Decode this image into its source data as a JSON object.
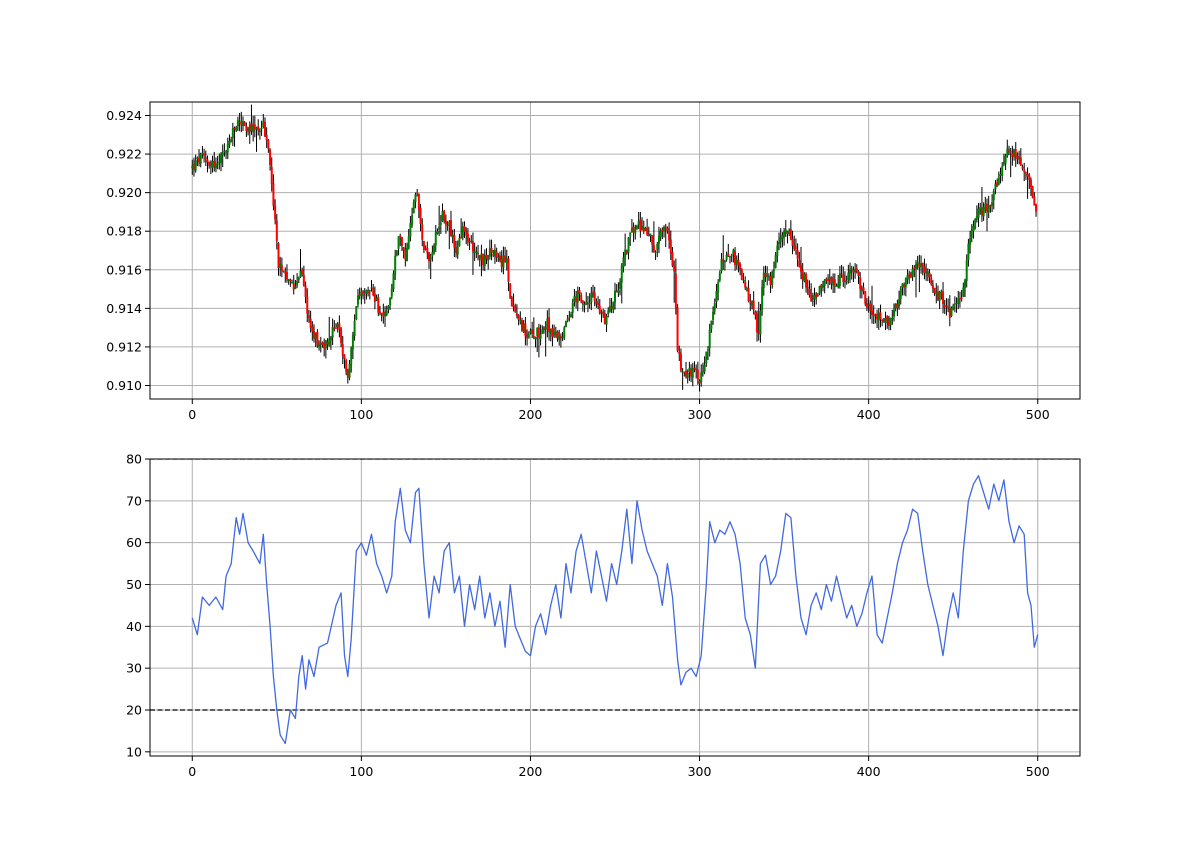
{
  "chart_data": [
    {
      "type": "candlestick",
      "title": "",
      "xlabel": "",
      "ylabel": "",
      "xlim": [
        -25,
        525
      ],
      "ylim": [
        0.9093,
        0.9247
      ],
      "grid": true,
      "x_ticks": [
        0,
        100,
        200,
        300,
        400,
        500
      ],
      "x_tick_labels": [
        "0",
        "100",
        "200",
        "300",
        "400",
        "500"
      ],
      "y_ticks": [
        0.91,
        0.912,
        0.914,
        0.916,
        0.918,
        0.92,
        0.922,
        0.924
      ],
      "y_tick_labels": [
        "0.910",
        "0.912",
        "0.914",
        "0.916",
        "0.918",
        "0.920",
        "0.922",
        "0.924"
      ],
      "colors": {
        "up": "#008000",
        "down": "#ff0000",
        "wick": "#000000"
      },
      "n_bars": 500,
      "close_path": [
        [
          0,
          0.9213
        ],
        [
          5,
          0.9218
        ],
        [
          10,
          0.9216
        ],
        [
          15,
          0.9214
        ],
        [
          20,
          0.9222
        ],
        [
          25,
          0.9233
        ],
        [
          28,
          0.9238
        ],
        [
          32,
          0.9232
        ],
        [
          38,
          0.9233
        ],
        [
          42,
          0.9235
        ],
        [
          45,
          0.9222
        ],
        [
          47,
          0.9205
        ],
        [
          49,
          0.9185
        ],
        [
          51,
          0.9162
        ],
        [
          55,
          0.9155
        ],
        [
          60,
          0.9152
        ],
        [
          64,
          0.916
        ],
        [
          67,
          0.9145
        ],
        [
          70,
          0.913
        ],
        [
          75,
          0.9122
        ],
        [
          80,
          0.9122
        ],
        [
          84,
          0.913
        ],
        [
          86,
          0.9133
        ],
        [
          89,
          0.9115
        ],
        [
          92,
          0.9105
        ],
        [
          95,
          0.9125
        ],
        [
          98,
          0.9145
        ],
        [
          102,
          0.9147
        ],
        [
          106,
          0.915
        ],
        [
          110,
          0.914
        ],
        [
          114,
          0.9135
        ],
        [
          118,
          0.915
        ],
        [
          122,
          0.918
        ],
        [
          126,
          0.9165
        ],
        [
          130,
          0.919
        ],
        [
          133,
          0.92
        ],
        [
          136,
          0.9175
        ],
        [
          140,
          0.9163
        ],
        [
          144,
          0.918
        ],
        [
          148,
          0.9188
        ],
        [
          152,
          0.9183
        ],
        [
          156,
          0.9168
        ],
        [
          160,
          0.918
        ],
        [
          166,
          0.9172
        ],
        [
          172,
          0.9165
        ],
        [
          178,
          0.917
        ],
        [
          182,
          0.9162
        ],
        [
          186,
          0.9168
        ],
        [
          188,
          0.9145
        ],
        [
          190,
          0.9138
        ],
        [
          194,
          0.9133
        ],
        [
          198,
          0.9125
        ],
        [
          205,
          0.9128
        ],
        [
          210,
          0.9132
        ],
        [
          215,
          0.9125
        ],
        [
          220,
          0.9128
        ],
        [
          224,
          0.914
        ],
        [
          228,
          0.9148
        ],
        [
          232,
          0.914
        ],
        [
          236,
          0.9147
        ],
        [
          240,
          0.914
        ],
        [
          244,
          0.9135
        ],
        [
          248,
          0.9142
        ],
        [
          252,
          0.9152
        ],
        [
          256,
          0.9168
        ],
        [
          260,
          0.918
        ],
        [
          265,
          0.9183
        ],
        [
          270,
          0.9178
        ],
        [
          274,
          0.917
        ],
        [
          278,
          0.918
        ],
        [
          282,
          0.9178
        ],
        [
          285,
          0.9158
        ],
        [
          287,
          0.912
        ],
        [
          289,
          0.9108
        ],
        [
          293,
          0.9105
        ],
        [
          297,
          0.911
        ],
        [
          300,
          0.9103
        ],
        [
          304,
          0.9115
        ],
        [
          308,
          0.914
        ],
        [
          312,
          0.916
        ],
        [
          316,
          0.917
        ],
        [
          320,
          0.9168
        ],
        [
          324,
          0.9158
        ],
        [
          328,
          0.9148
        ],
        [
          332,
          0.914
        ],
        [
          335,
          0.9125
        ],
        [
          338,
          0.916
        ],
        [
          342,
          0.9155
        ],
        [
          346,
          0.917
        ],
        [
          350,
          0.9183
        ],
        [
          354,
          0.9178
        ],
        [
          358,
          0.9165
        ],
        [
          362,
          0.9155
        ],
        [
          366,
          0.9145
        ],
        [
          370,
          0.915
        ],
        [
          376,
          0.9153
        ],
        [
          382,
          0.9155
        ],
        [
          388,
          0.9157
        ],
        [
          392,
          0.916
        ],
        [
          396,
          0.9148
        ],
        [
          400,
          0.914
        ],
        [
          404,
          0.9135
        ],
        [
          408,
          0.9135
        ],
        [
          412,
          0.913
        ],
        [
          416,
          0.914
        ],
        [
          420,
          0.915
        ],
        [
          424,
          0.9157
        ],
        [
          428,
          0.9162
        ],
        [
          432,
          0.916
        ],
        [
          436,
          0.9155
        ],
        [
          440,
          0.9148
        ],
        [
          444,
          0.9145
        ],
        [
          448,
          0.9138
        ],
        [
          452,
          0.914
        ],
        [
          456,
          0.915
        ],
        [
          460,
          0.9178
        ],
        [
          464,
          0.9188
        ],
        [
          468,
          0.9192
        ],
        [
          472,
          0.9195
        ],
        [
          476,
          0.9205
        ],
        [
          480,
          0.9218
        ],
        [
          484,
          0.9222
        ],
        [
          488,
          0.9218
        ],
        [
          492,
          0.9212
        ],
        [
          496,
          0.9202
        ],
        [
          499,
          0.9193
        ]
      ]
    },
    {
      "type": "line",
      "title": "",
      "xlabel": "",
      "ylabel": "",
      "xlim": [
        -25,
        525
      ],
      "ylim": [
        9,
        80
      ],
      "grid": true,
      "x_ticks": [
        0,
        100,
        200,
        300,
        400,
        500
      ],
      "x_tick_labels": [
        "0",
        "100",
        "200",
        "300",
        "400",
        "500"
      ],
      "y_ticks": [
        10,
        20,
        30,
        40,
        50,
        60,
        70,
        80
      ],
      "y_tick_labels": [
        "10",
        "20",
        "30",
        "40",
        "50",
        "60",
        "70",
        "80"
      ],
      "reference_lines": [
        20,
        80
      ],
      "colors": {
        "line": "#4169e1",
        "reference": "#000000"
      },
      "points": [
        [
          0,
          42
        ],
        [
          3,
          38
        ],
        [
          6,
          47
        ],
        [
          10,
          45
        ],
        [
          14,
          47
        ],
        [
          18,
          44
        ],
        [
          20,
          52
        ],
        [
          23,
          55
        ],
        [
          26,
          66
        ],
        [
          28,
          62
        ],
        [
          30,
          67
        ],
        [
          33,
          60
        ],
        [
          36,
          58
        ],
        [
          40,
          55
        ],
        [
          42,
          62
        ],
        [
          44,
          50
        ],
        [
          46,
          40
        ],
        [
          48,
          28
        ],
        [
          50,
          20
        ],
        [
          52,
          14
        ],
        [
          55,
          12
        ],
        [
          58,
          20
        ],
        [
          61,
          18
        ],
        [
          63,
          28
        ],
        [
          65,
          33
        ],
        [
          67,
          25
        ],
        [
          69,
          32
        ],
        [
          72,
          28
        ],
        [
          75,
          35
        ],
        [
          80,
          36
        ],
        [
          85,
          45
        ],
        [
          88,
          48
        ],
        [
          90,
          33
        ],
        [
          92,
          28
        ],
        [
          94,
          37
        ],
        [
          97,
          58
        ],
        [
          100,
          60
        ],
        [
          103,
          57
        ],
        [
          106,
          62
        ],
        [
          109,
          55
        ],
        [
          112,
          52
        ],
        [
          115,
          48
        ],
        [
          118,
          52
        ],
        [
          120,
          65
        ],
        [
          123,
          73
        ],
        [
          126,
          63
        ],
        [
          129,
          60
        ],
        [
          132,
          72
        ],
        [
          134,
          73
        ],
        [
          137,
          55
        ],
        [
          140,
          42
        ],
        [
          143,
          52
        ],
        [
          146,
          48
        ],
        [
          149,
          58
        ],
        [
          152,
          60
        ],
        [
          155,
          48
        ],
        [
          158,
          52
        ],
        [
          161,
          40
        ],
        [
          164,
          50
        ],
        [
          167,
          44
        ],
        [
          170,
          52
        ],
        [
          173,
          42
        ],
        [
          176,
          48
        ],
        [
          179,
          40
        ],
        [
          182,
          46
        ],
        [
          185,
          35
        ],
        [
          188,
          50
        ],
        [
          191,
          40
        ],
        [
          194,
          37
        ],
        [
          197,
          34
        ],
        [
          200,
          33
        ],
        [
          203,
          40
        ],
        [
          206,
          43
        ],
        [
          209,
          38
        ],
        [
          212,
          45
        ],
        [
          215,
          50
        ],
        [
          218,
          42
        ],
        [
          221,
          55
        ],
        [
          224,
          48
        ],
        [
          227,
          58
        ],
        [
          230,
          62
        ],
        [
          233,
          55
        ],
        [
          236,
          48
        ],
        [
          239,
          58
        ],
        [
          242,
          52
        ],
        [
          245,
          46
        ],
        [
          248,
          55
        ],
        [
          251,
          50
        ],
        [
          254,
          58
        ],
        [
          257,
          68
        ],
        [
          260,
          55
        ],
        [
          263,
          70
        ],
        [
          266,
          63
        ],
        [
          269,
          58
        ],
        [
          272,
          55
        ],
        [
          275,
          52
        ],
        [
          278,
          45
        ],
        [
          281,
          55
        ],
        [
          284,
          47
        ],
        [
          287,
          32
        ],
        [
          289,
          26
        ],
        [
          292,
          29
        ],
        [
          295,
          30
        ],
        [
          298,
          28
        ],
        [
          301,
          33
        ],
        [
          304,
          50
        ],
        [
          306,
          65
        ],
        [
          309,
          60
        ],
        [
          312,
          63
        ],
        [
          315,
          62
        ],
        [
          318,
          65
        ],
        [
          321,
          62
        ],
        [
          324,
          55
        ],
        [
          327,
          42
        ],
        [
          330,
          38
        ],
        [
          333,
          30
        ],
        [
          336,
          55
        ],
        [
          339,
          57
        ],
        [
          342,
          50
        ],
        [
          345,
          52
        ],
        [
          348,
          58
        ],
        [
          351,
          67
        ],
        [
          354,
          66
        ],
        [
          357,
          52
        ],
        [
          360,
          42
        ],
        [
          363,
          38
        ],
        [
          366,
          45
        ],
        [
          369,
          48
        ],
        [
          372,
          44
        ],
        [
          375,
          50
        ],
        [
          378,
          46
        ],
        [
          381,
          52
        ],
        [
          384,
          47
        ],
        [
          387,
          42
        ],
        [
          390,
          45
        ],
        [
          393,
          40
        ],
        [
          396,
          43
        ],
        [
          399,
          48
        ],
        [
          402,
          52
        ],
        [
          405,
          38
        ],
        [
          408,
          36
        ],
        [
          411,
          42
        ],
        [
          414,
          48
        ],
        [
          417,
          55
        ],
        [
          420,
          60
        ],
        [
          423,
          63
        ],
        [
          426,
          68
        ],
        [
          429,
          67
        ],
        [
          432,
          58
        ],
        [
          435,
          50
        ],
        [
          438,
          45
        ],
        [
          441,
          40
        ],
        [
          444,
          33
        ],
        [
          447,
          42
        ],
        [
          450,
          48
        ],
        [
          453,
          42
        ],
        [
          456,
          58
        ],
        [
          459,
          70
        ],
        [
          462,
          74
        ],
        [
          465,
          76
        ],
        [
          468,
          72
        ],
        [
          471,
          68
        ],
        [
          474,
          74
        ],
        [
          477,
          70
        ],
        [
          480,
          75
        ],
        [
          483,
          65
        ],
        [
          486,
          60
        ],
        [
          489,
          64
        ],
        [
          492,
          62
        ],
        [
          494,
          48
        ],
        [
          496,
          45
        ],
        [
          498,
          35
        ],
        [
          500,
          38
        ]
      ]
    }
  ]
}
